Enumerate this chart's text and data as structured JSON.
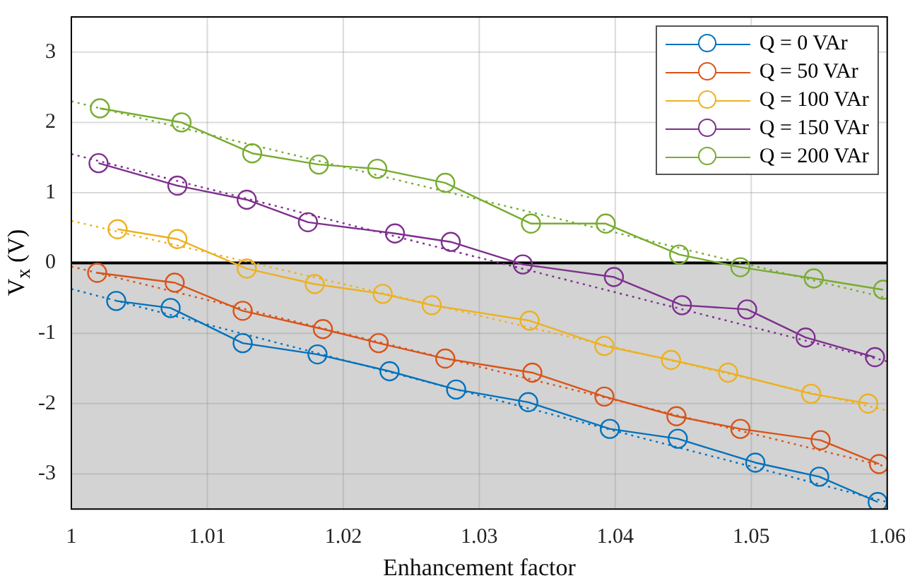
{
  "chart_data": {
    "type": "line",
    "xlabel": "Enhancement factor",
    "ylabel": "V$_{x}$ (V)",
    "xlim": [
      1,
      1.06
    ],
    "xticks": [
      1,
      1.01,
      1.02,
      1.03,
      1.04,
      1.05,
      1.06
    ],
    "ylim": [
      -3.5,
      3.5
    ],
    "yticks": [
      -3,
      -2,
      -1,
      0,
      1,
      2,
      3
    ],
    "grid": true,
    "legend": "top right",
    "marker": "circle",
    "line_style": "solid",
    "bands": [
      {
        "axis": "y",
        "from": -3.5,
        "to": 0,
        "color": "#d3d3d3"
      }
    ],
    "ref_lines": [
      {
        "axis": "y",
        "value": 0,
        "color": "#000000"
      }
    ],
    "series": [
      {
        "name": "Q = 0 VAr",
        "color": "#0072bd",
        "x": [
          1.0033,
          1.0073,
          1.0126,
          1.0181,
          1.0234,
          1.0283,
          1.0336,
          1.0396,
          1.0446,
          1.0503,
          1.055,
          1.0593
        ],
        "values": [
          -0.54,
          -0.64,
          -1.14,
          -1.3,
          -1.54,
          -1.8,
          -1.98,
          -2.36,
          -2.5,
          -2.84,
          -3.04,
          -3.4
        ]
      },
      {
        "name": "Q = 50 VAr",
        "color": "#d95319",
        "x": [
          1.0019,
          1.0076,
          1.0126,
          1.0185,
          1.0226,
          1.0275,
          1.0339,
          1.0392,
          1.0445,
          1.0492,
          1.0551,
          1.0594
        ],
        "values": [
          -0.14,
          -0.28,
          -0.68,
          -0.94,
          -1.14,
          -1.36,
          -1.56,
          -1.9,
          -2.18,
          -2.36,
          -2.52,
          -2.86
        ]
      },
      {
        "name": "Q = 100 VAr",
        "color": "#edb120",
        "x": [
          1.0034,
          1.0078,
          1.0129,
          1.0179,
          1.0229,
          1.0265,
          1.0337,
          1.0392,
          1.0441,
          1.0483,
          1.0544,
          1.0586
        ],
        "values": [
          0.48,
          0.34,
          -0.08,
          -0.3,
          -0.44,
          -0.6,
          -0.82,
          -1.18,
          -1.38,
          -1.56,
          -1.86,
          -2.0
        ]
      },
      {
        "name": "Q = 150 VAr",
        "color": "#7e2f8e",
        "x": [
          1.002,
          1.0078,
          1.0129,
          1.0174,
          1.0238,
          1.0279,
          1.0332,
          1.0399,
          1.0449,
          1.0497,
          1.054,
          1.0591
        ],
        "values": [
          1.42,
          1.1,
          0.9,
          0.58,
          0.42,
          0.3,
          -0.02,
          -0.2,
          -0.6,
          -0.66,
          -1.06,
          -1.34
        ]
      },
      {
        "name": "Q = 200 VAr",
        "color": "#77ac30",
        "x": [
          1.0021,
          1.0081,
          1.0133,
          1.0182,
          1.0225,
          1.0275,
          1.0338,
          1.0393,
          1.0447,
          1.0492,
          1.0546,
          1.0597
        ],
        "values": [
          2.2,
          2.0,
          1.56,
          1.4,
          1.34,
          1.14,
          0.56,
          0.56,
          0.12,
          -0.06,
          -0.22,
          -0.38
        ]
      },
      {
        "type": "line",
        "color": "#0072bd",
        "line_style": "dotted",
        "marker": "none",
        "x": [
          1,
          1.06
        ],
        "values": [
          -0.37,
          -3.4
        ]
      },
      {
        "type": "line",
        "color": "#d95319",
        "line_style": "dotted",
        "marker": "none",
        "x": [
          1,
          1.06
        ],
        "values": [
          -0.05,
          -2.9
        ]
      },
      {
        "type": "line",
        "color": "#edb120",
        "line_style": "dotted",
        "marker": "none",
        "x": [
          1,
          1.06
        ],
        "values": [
          0.6,
          -2.1
        ]
      },
      {
        "type": "line",
        "color": "#7e2f8e",
        "line_style": "dotted",
        "marker": "none",
        "x": [
          1,
          1.06
        ],
        "values": [
          1.55,
          -1.4
        ]
      },
      {
        "type": "line",
        "color": "#77ac30",
        "line_style": "dotted",
        "marker": "none",
        "x": [
          1,
          1.06
        ],
        "values": [
          2.3,
          -0.5
        ]
      }
    ]
  }
}
